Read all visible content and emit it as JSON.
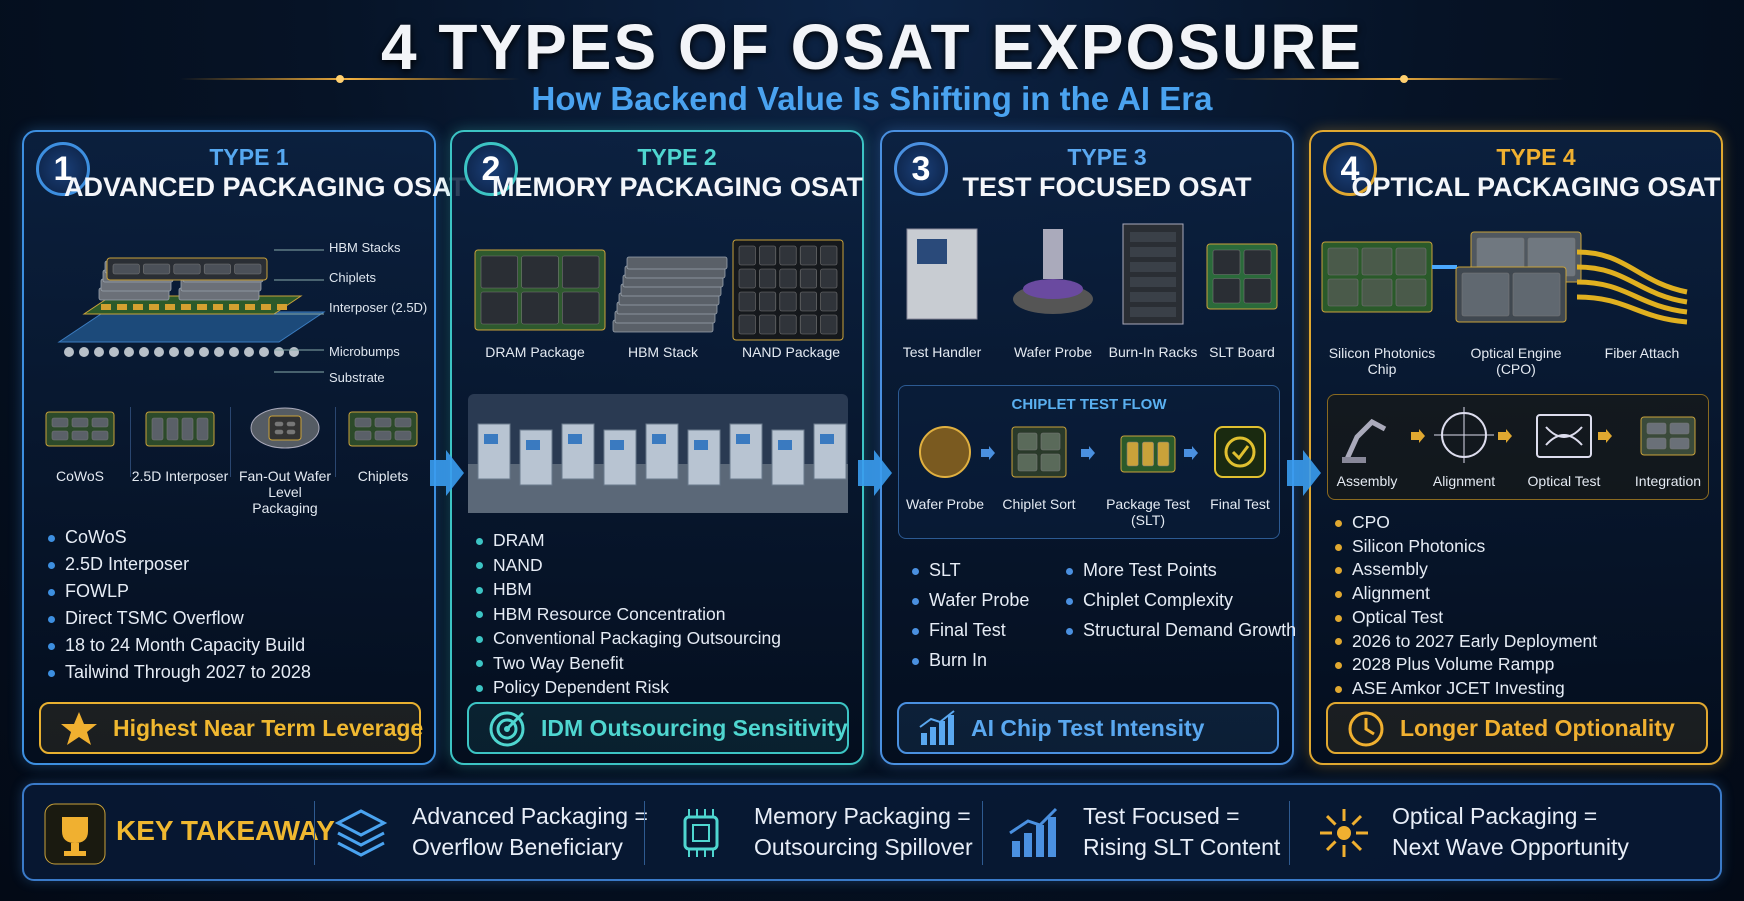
{
  "header": {
    "title": "4 TYPES OF OSAT EXPOSURE",
    "subtitle": "How Backend Value Is Shifting in the AI Era"
  },
  "cards": [
    {
      "number": "1",
      "type": "TYPE 1",
      "title": "ADVANCED PACKAGING OSAT",
      "callouts": [
        "HBM Stacks",
        "Chiplets",
        "Interposer (2.5D)",
        "Microbumps",
        "Substrate"
      ],
      "products": [
        "CoWoS",
        "2.5D Interposer",
        "Fan-Out Wafer Level Packaging",
        "Chiplets"
      ],
      "bullets": [
        "CoWoS",
        "2.5D Interposer",
        "FOWLP",
        "Direct TSMC Overflow",
        "18 to 24 Month Capacity Build",
        "Tailwind Through 2027 to 2028"
      ],
      "badge": "Highest Near Term Leverage"
    },
    {
      "number": "2",
      "type": "TYPE 2",
      "title": "MEMORY PACKAGING OSAT",
      "images": [
        "DRAM Package",
        "HBM Stack",
        "NAND Package"
      ],
      "bullets": [
        "DRAM",
        "NAND",
        "HBM",
        "HBM Resource Concentration",
        "Conventional Packaging Outsourcing",
        "Two Way Benefit",
        "Policy Dependent Risk"
      ],
      "badge": "IDM Outsourcing Sensitivity"
    },
    {
      "number": "3",
      "type": "TYPE 3",
      "title": "TEST FOCUSED OSAT",
      "images": [
        "Test Handler",
        "Wafer Probe",
        "Burn-In Racks",
        "SLT Board"
      ],
      "flow_title": "CHIPLET TEST FLOW",
      "flow": [
        "Wafer Probe",
        "Chiplet Sort",
        "Package Test (SLT)",
        "Final Test"
      ],
      "bullets": [
        "SLT",
        "Wafer Probe",
        "Final Test",
        "Burn In"
      ],
      "bullets_right": [
        "More Test Points",
        "Chiplet Complexity",
        "Structural Demand Growth"
      ],
      "badge": "AI Chip Test Intensity"
    },
    {
      "number": "4",
      "type": "TYPE 4",
      "title": "OPTICAL PACKAGING OSAT",
      "images": [
        "Silicon Photonics Chip",
        "Optical Engine (CPO)",
        "Fiber Attach"
      ],
      "flow": [
        "Assembly",
        "Alignment",
        "Optical Test",
        "Integration"
      ],
      "bullets": [
        "CPO",
        "Silicon Photonics",
        "Assembly",
        "Alignment",
        "Optical Test",
        "2026 to 2027 Early Deployment",
        "2028 Plus Volume Rampp",
        "ASE Amkor JCET Investing"
      ],
      "badge": "Longer Dated Optionality"
    }
  ],
  "takeaway": {
    "label": "KEY TAKEAWAY",
    "items": [
      [
        "Advanced Packaging =",
        "Overflow Beneficiary"
      ],
      [
        "Memory Packaging =",
        "Outsourcing Spillover"
      ],
      [
        "Test Focused =",
        "Rising SLT Content"
      ],
      [
        "Optical Packaging =",
        "Next Wave Opportunity"
      ]
    ]
  }
}
